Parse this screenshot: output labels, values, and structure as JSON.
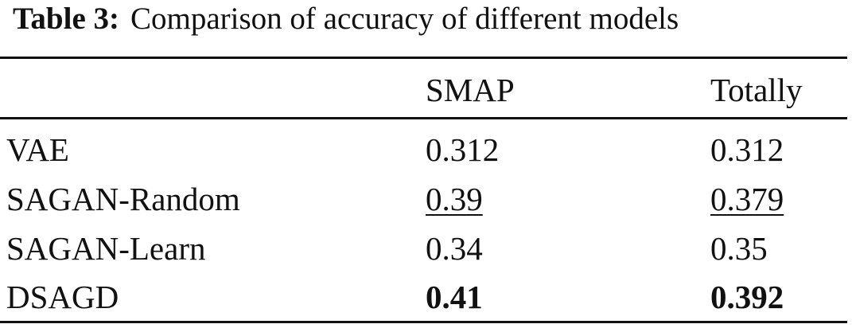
{
  "caption": {
    "label": "Table 3:",
    "text": "Comparison of accuracy of different models"
  },
  "table": {
    "header": [
      "SMAP",
      "Totally"
    ],
    "rows": [
      [
        "VAE",
        0.312,
        0.312
      ],
      [
        "SAGAN-Random",
        0.39,
        0.379
      ],
      [
        "SAGAN-Learn",
        0.34,
        0.35
      ],
      [
        "DSAGD",
        0.41,
        0.392
      ]
    ]
  }
}
